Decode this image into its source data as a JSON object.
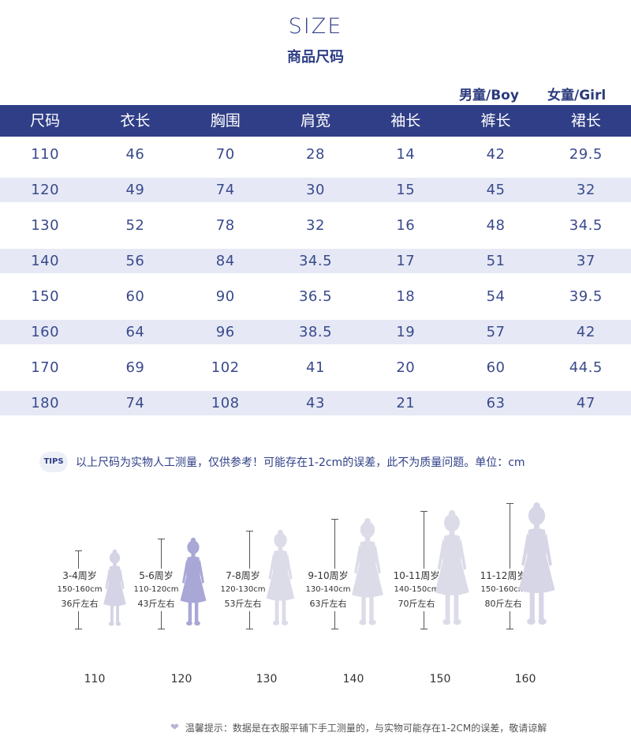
{
  "title_en": "SIZE",
  "title_cn": "商品尺码",
  "gender_boy": "男童/Boy",
  "gender_girl": "女童/Girl",
  "table": {
    "headers": [
      "尺码",
      "衣长",
      "胸围",
      "肩宽",
      "袖长",
      "裤长",
      "裙长"
    ],
    "rows": [
      [
        "110",
        "46",
        "70",
        "28",
        "14",
        "42",
        "29.5"
      ],
      [
        "120",
        "49",
        "74",
        "30",
        "15",
        "45",
        "32"
      ],
      [
        "130",
        "52",
        "78",
        "32",
        "16",
        "48",
        "34.5"
      ],
      [
        "140",
        "56",
        "84",
        "34.5",
        "17",
        "51",
        "37"
      ],
      [
        "150",
        "60",
        "90",
        "36.5",
        "18",
        "54",
        "39.5"
      ],
      [
        "160",
        "64",
        "96",
        "38.5",
        "19",
        "57",
        "42"
      ],
      [
        "170",
        "69",
        "102",
        "41",
        "20",
        "60",
        "44.5"
      ],
      [
        "180",
        "74",
        "108",
        "43",
        "21",
        "63",
        "47"
      ]
    ]
  },
  "tips_badge": "TIPS",
  "tips_text": "以上尺码为实物人工测量，仅供参考！可能存在1-2cm的误差，此不为质量问题。单位：cm",
  "figures": [
    {
      "age": "3-4周岁",
      "range": "150-160cm",
      "weight": "36斤左右",
      "size": "110",
      "color": "#d4d4e6"
    },
    {
      "age": "5-6周岁",
      "range": "110-120cm",
      "weight": "43斤左右",
      "size": "120",
      "color": "#a9a7d6"
    },
    {
      "age": "7-8周岁",
      "range": "120-130cm",
      "weight": "53斤左右",
      "size": "130",
      "color": "#dcdce9"
    },
    {
      "age": "9-10周岁",
      "range": "130-140cm",
      "weight": "63斤左右",
      "size": "140",
      "color": "#dcdce9"
    },
    {
      "age": "10-11周岁",
      "range": "140-150cm",
      "weight": "70斤左右",
      "size": "150",
      "color": "#dcdce9"
    },
    {
      "age": "11-12周岁",
      "range": "150-160cm",
      "weight": "80斤左右",
      "size": "160",
      "color": "#d7d6e6"
    }
  ],
  "footer_text": "温馨提示：数据是在衣服平铺下手工测量的，与实物可能存在1-2CM的误差，敬请谅解",
  "icons": {
    "heart": "heart-icon"
  }
}
